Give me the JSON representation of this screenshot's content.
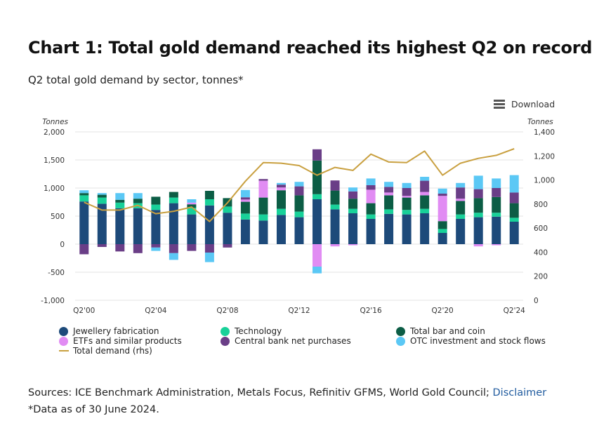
{
  "header": {
    "title": "Chart 1: Total gold demand reached its highest Q2 on record",
    "subtitle": "Q2 total gold demand by sector, tonnes*"
  },
  "download": {
    "label": "Download",
    "icon": "menu-icon"
  },
  "chart_data": {
    "type": "bar",
    "stacked": true,
    "left_axis": {
      "title": "Tonnes",
      "ylim": [
        -1000,
        2000
      ],
      "ticks": [
        "2,000",
        "1,500",
        "1,000",
        "500",
        "0",
        "-500",
        "-1,000"
      ],
      "tick_values": [
        2000,
        1500,
        1000,
        500,
        0,
        -500,
        -1000
      ]
    },
    "right_axis": {
      "title": "Tonnes",
      "ylim": [
        0,
        1400
      ],
      "ticks": [
        "1,400",
        "1,200",
        "1,000",
        "800",
        "600",
        "400",
        "200",
        "0"
      ],
      "tick_values": [
        1400,
        1200,
        1000,
        800,
        600,
        400,
        200,
        0
      ]
    },
    "categories": [
      "Q2'00",
      "Q2'01",
      "Q2'02",
      "Q2'03",
      "Q2'04",
      "Q2'05",
      "Q2'06",
      "Q2'07",
      "Q2'08",
      "Q2'09",
      "Q2'10",
      "Q2'11",
      "Q2'12",
      "Q2'13",
      "Q2'14",
      "Q2'15",
      "Q2'16",
      "Q2'17",
      "Q2'18",
      "Q2'19",
      "Q2'20",
      "Q2'21",
      "Q2'22",
      "Q2'23",
      "Q2'24"
    ],
    "x_tick_labels": [
      "Q2'00",
      "Q2'04",
      "Q2'08",
      "Q2'12",
      "Q2'16",
      "Q2'20",
      "Q2'24"
    ],
    "series": [
      {
        "name": "Jewellery fabrication",
        "color": "#1d4a7a",
        "values": [
          760,
          720,
          640,
          640,
          610,
          730,
          530,
          690,
          560,
          440,
          420,
          520,
          480,
          800,
          620,
          550,
          450,
          540,
          530,
          550,
          200,
          450,
          480,
          490,
          400
        ]
      },
      {
        "name": "Technology",
        "color": "#18d199",
        "values": [
          110,
          110,
          100,
          90,
          95,
          100,
          120,
          110,
          110,
          105,
          110,
          110,
          100,
          90,
          85,
          80,
          80,
          80,
          80,
          80,
          70,
          80,
          80,
          70,
          70
        ]
      },
      {
        "name": "Total bar and coin",
        "color": "#0c5d45",
        "values": [
          40,
          50,
          50,
          80,
          140,
          100,
          60,
          150,
          150,
          210,
          300,
          330,
          290,
          600,
          250,
          180,
          200,
          250,
          220,
          240,
          140,
          240,
          260,
          280,
          260
        ]
      },
      {
        "name": "ETFs and similar products",
        "color": "#e18cf3",
        "values": [
          0,
          0,
          0,
          0,
          0,
          0,
          30,
          0,
          0,
          40,
          300,
          50,
          0,
          -400,
          -40,
          -20,
          240,
          50,
          30,
          60,
          450,
          40,
          -40,
          -20,
          0
        ]
      },
      {
        "name": "Central bank net purchases",
        "color": "#6a3e87",
        "values": [
          -180,
          -50,
          -130,
          -160,
          -60,
          -160,
          -120,
          -150,
          -60,
          40,
          30,
          50,
          160,
          200,
          180,
          130,
          80,
          100,
          140,
          200,
          40,
          200,
          160,
          160,
          190
        ]
      },
      {
        "name": "OTC investment and stock flows",
        "color": "#5bc8f5",
        "values": [
          50,
          30,
          120,
          100,
          -60,
          -120,
          60,
          -170,
          0,
          130,
          0,
          30,
          80,
          -120,
          0,
          70,
          120,
          90,
          90,
          70,
          90,
          80,
          240,
          170,
          310
        ]
      }
    ],
    "line_series": {
      "name": "Total demand (rhs)",
      "color": "#c9a040",
      "axis": "right",
      "values": [
        815,
        750,
        750,
        790,
        720,
        740,
        775,
        655,
        810,
        990,
        1145,
        1140,
        1120,
        1040,
        1105,
        1080,
        1215,
        1150,
        1145,
        1240,
        1040,
        1140,
        1180,
        1205,
        1260
      ]
    },
    "legend": [
      {
        "label": "Jewellery fabrication",
        "color": "#1d4a7a",
        "shape": "dot"
      },
      {
        "label": "Technology",
        "color": "#18d199",
        "shape": "dot"
      },
      {
        "label": "Total bar and coin",
        "color": "#0c5d45",
        "shape": "dot"
      },
      {
        "label": "ETFs and similar products",
        "color": "#e18cf3",
        "shape": "dot"
      },
      {
        "label": "Central bank net purchases",
        "color": "#6a3e87",
        "shape": "dot"
      },
      {
        "label": "OTC investment and stock flows",
        "color": "#5bc8f5",
        "shape": "dot"
      },
      {
        "label": "Total demand (rhs)",
        "color": "#c9a040",
        "shape": "line"
      }
    ],
    "legend_position": "bottom",
    "grid": "horizontal"
  },
  "footer": {
    "sources_text": "Sources: ICE Benchmark Administration, Metals Focus, Refinitiv GFMS, World Gold Council; ",
    "disclaimer_link": "Disclaimer",
    "note": "*Data as of 30 June 2024."
  }
}
